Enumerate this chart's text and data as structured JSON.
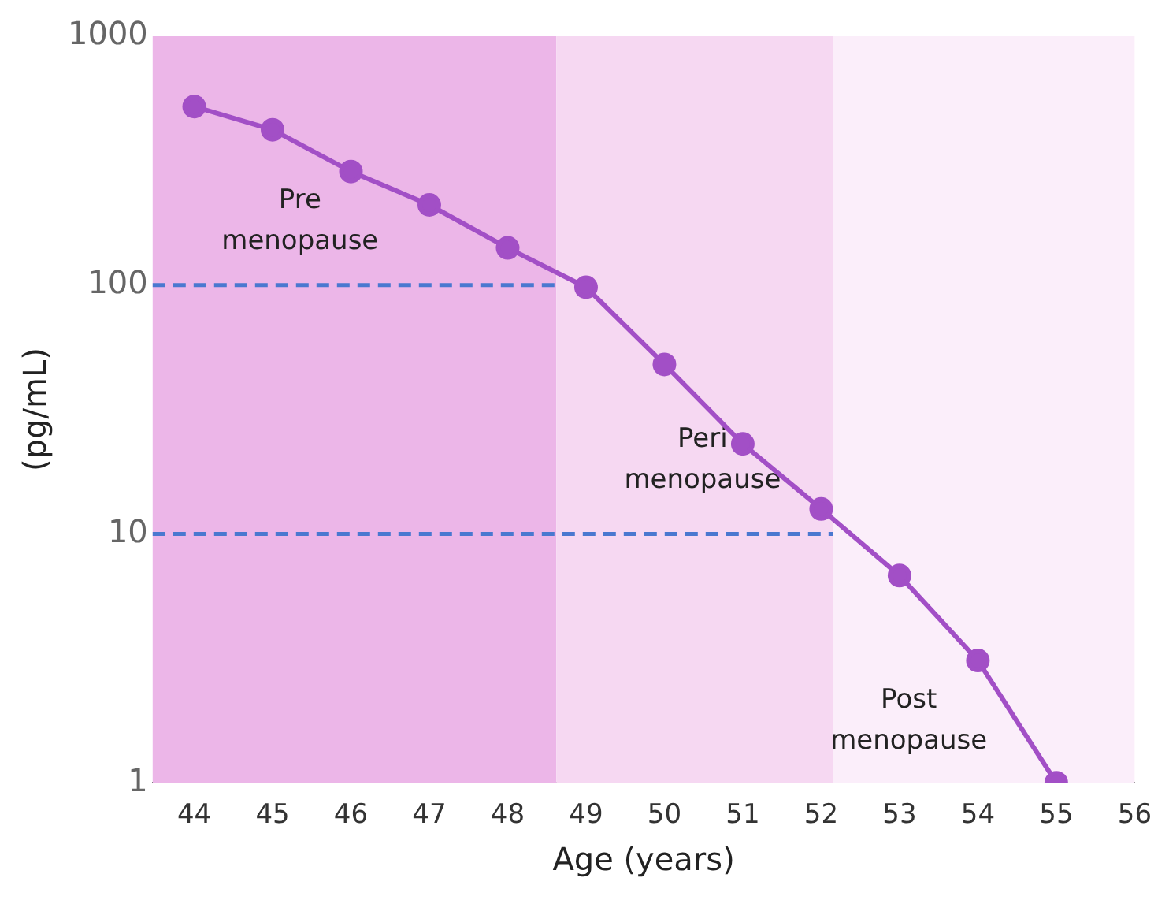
{
  "chart_data": {
    "type": "line",
    "xlabel": "Age (years)",
    "ylabel": "(pg/mL)",
    "x": [
      44,
      45,
      46,
      47,
      48,
      49,
      50,
      51,
      52,
      53,
      54,
      55
    ],
    "series": [
      {
        "color": "#a24fc6",
        "values": [
          522,
          421,
          286,
          210,
          141,
          98,
          48,
          23,
          12.6,
          6.8,
          3.1,
          1.0
        ]
      }
    ],
    "xlim": [
      43.47,
      56
    ],
    "xticks": [
      44,
      45,
      46,
      47,
      48,
      49,
      50,
      51,
      52,
      53,
      54,
      55,
      56
    ],
    "ylim": [
      1,
      1000
    ],
    "yticks": [
      1,
      10,
      100,
      1000
    ],
    "log": "y",
    "grid": false,
    "legend": false,
    "marker": "circle",
    "line_style": "solid",
    "bands": [
      {
        "axis": "x",
        "from": 43.47,
        "to": 48.62,
        "label": "Pre menopause",
        "color": "#ecb6e8"
      },
      {
        "axis": "x",
        "from": 48.62,
        "to": 52.15,
        "label": "Peri menopause",
        "color": "#f6d8f2"
      },
      {
        "axis": "x",
        "from": 52.15,
        "to": 56,
        "label": "Post menopause",
        "color": "#fbeefa"
      }
    ],
    "ref_lines": [
      {
        "axis": "y",
        "value": 100,
        "color": "#4a78d0",
        "line_style": "dashed"
      },
      {
        "axis": "y",
        "value": 10,
        "color": "#4a78d0",
        "line_style": "dashed"
      }
    ]
  }
}
